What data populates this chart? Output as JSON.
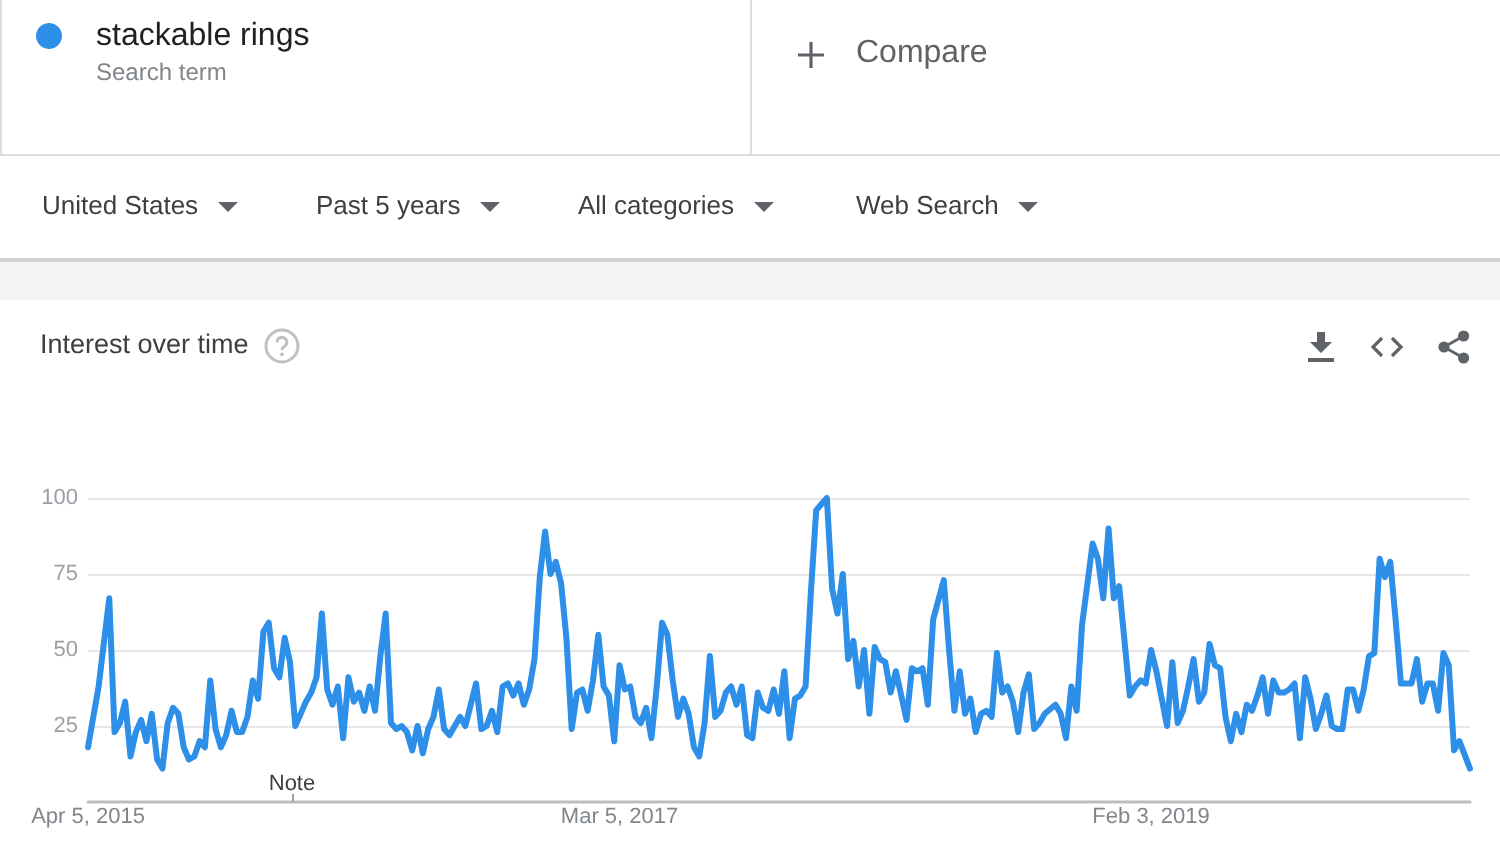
{
  "chart_data": {
    "type": "line",
    "title": "Interest over time",
    "legend": "top left",
    "grid": "y",
    "marker": "none",
    "xlim": [
      "2015-04-05",
      "2020-03-29"
    ],
    "xticks": [
      {
        "value": "2015-04-05",
        "label": "Apr 5, 2015"
      },
      {
        "value": "2017-03-05",
        "label": "Mar 5, 2017"
      },
      {
        "value": "2019-02-03",
        "label": "Feb 3, 2019"
      }
    ],
    "ylim": [
      0,
      100
    ],
    "yticks": [
      25,
      50,
      75,
      100
    ],
    "annotations": [
      "Search term",
      "Compare",
      "United States",
      "Past 5 years",
      "All categories",
      "Web Search",
      "Note"
    ],
    "x": [
      "2015-04-05",
      "2015-04-19",
      "2015-05-03",
      "2015-05-10",
      "2015-05-17",
      "2015-05-24",
      "2015-05-31",
      "2015-06-07",
      "2015-06-14",
      "2015-06-21",
      "2015-06-28",
      "2015-07-05",
      "2015-07-12",
      "2015-07-19",
      "2015-07-26",
      "2015-08-02",
      "2015-08-09",
      "2015-08-16",
      "2015-08-23",
      "2015-08-30",
      "2015-09-06",
      "2015-09-13",
      "2015-09-20",
      "2015-09-27",
      "2015-10-04",
      "2015-10-11",
      "2015-10-18",
      "2015-10-25",
      "2015-11-01",
      "2015-11-08",
      "2015-11-15",
      "2015-11-22",
      "2015-11-29",
      "2015-12-06",
      "2015-12-13",
      "2015-12-20",
      "2015-12-27",
      "2016-01-03",
      "2016-01-10",
      "2016-01-17",
      "2016-01-24",
      "2016-01-31",
      "2016-02-07",
      "2016-02-14",
      "2016-02-21",
      "2016-02-28",
      "2016-03-06",
      "2016-03-13",
      "2016-03-20",
      "2016-03-27",
      "2016-04-03",
      "2016-04-10",
      "2016-04-17",
      "2016-04-24",
      "2016-05-01",
      "2016-05-08",
      "2016-05-15",
      "2016-05-22",
      "2016-05-29",
      "2016-06-05",
      "2016-06-12",
      "2016-06-19",
      "2016-06-26",
      "2016-07-03",
      "2016-07-10",
      "2016-07-17",
      "2016-07-24",
      "2016-07-31",
      "2016-08-07",
      "2016-08-14",
      "2016-08-21",
      "2016-08-28",
      "2016-09-04",
      "2016-09-11",
      "2016-09-18",
      "2016-09-25",
      "2016-10-02",
      "2016-10-09",
      "2016-10-16",
      "2016-10-23",
      "2016-10-30",
      "2016-11-06",
      "2016-11-13",
      "2016-11-20",
      "2016-11-27",
      "2016-12-04",
      "2016-12-11",
      "2016-12-18",
      "2016-12-25",
      "2017-01-01",
      "2017-01-08",
      "2017-01-15",
      "2017-01-22",
      "2017-01-29",
      "2017-02-05",
      "2017-02-12",
      "2017-02-19",
      "2017-02-26",
      "2017-03-05",
      "2017-03-12",
      "2017-03-19",
      "2017-03-26",
      "2017-04-02",
      "2017-04-09",
      "2017-04-16",
      "2017-04-23",
      "2017-04-30",
      "2017-05-07",
      "2017-05-14",
      "2017-05-21",
      "2017-05-28",
      "2017-06-04",
      "2017-06-11",
      "2017-06-18",
      "2017-06-25",
      "2017-07-02",
      "2017-07-09",
      "2017-07-16",
      "2017-07-23",
      "2017-07-30",
      "2017-08-06",
      "2017-08-13",
      "2017-08-20",
      "2017-08-27",
      "2017-09-03",
      "2017-09-10",
      "2017-09-17",
      "2017-09-24",
      "2017-10-01",
      "2017-10-08",
      "2017-10-15",
      "2017-10-22",
      "2017-10-29",
      "2017-11-05",
      "2017-11-12",
      "2017-11-19",
      "2017-11-26",
      "2017-12-03",
      "2017-12-10",
      "2017-12-17",
      "2017-12-24",
      "2017-12-31",
      "2018-01-07",
      "2018-01-14",
      "2018-01-21",
      "2018-01-28",
      "2018-02-04",
      "2018-02-11",
      "2018-02-18",
      "2018-02-25",
      "2018-03-04",
      "2018-03-11",
      "2018-03-18",
      "2018-03-25",
      "2018-04-01",
      "2018-04-08",
      "2018-04-15",
      "2018-04-22",
      "2018-05-06",
      "2018-05-13",
      "2018-05-20",
      "2018-05-27",
      "2018-06-03",
      "2018-06-10",
      "2018-06-17",
      "2018-06-24",
      "2018-07-01",
      "2018-07-08",
      "2018-07-15",
      "2018-07-22",
      "2018-07-29",
      "2018-08-05",
      "2018-08-12",
      "2018-08-19",
      "2018-08-26",
      "2018-09-02",
      "2018-09-09",
      "2018-09-16",
      "2018-09-30",
      "2018-10-07",
      "2018-10-14",
      "2018-10-21",
      "2018-10-28",
      "2018-11-04",
      "2018-11-18",
      "2018-11-25",
      "2018-12-02",
      "2018-12-09",
      "2018-12-16",
      "2018-12-23",
      "2019-01-06",
      "2019-01-13",
      "2019-01-20",
      "2019-01-27",
      "2019-02-03",
      "2019-02-10",
      "2019-02-24",
      "2019-03-03",
      "2019-03-10",
      "2019-03-17",
      "2019-03-24",
      "2019-03-31",
      "2019-04-07",
      "2019-04-14",
      "2019-04-21",
      "2019-04-28",
      "2019-05-05",
      "2019-05-12",
      "2019-05-19",
      "2019-05-26",
      "2019-06-02",
      "2019-06-09",
      "2019-06-16",
      "2019-06-23",
      "2019-06-30",
      "2019-07-07",
      "2019-07-14",
      "2019-07-21",
      "2019-07-28",
      "2019-08-04",
      "2019-08-11",
      "2019-08-18",
      "2019-08-25",
      "2019-09-01",
      "2019-09-08",
      "2019-09-15",
      "2019-09-22",
      "2019-09-29",
      "2019-10-06",
      "2019-10-13",
      "2019-10-20",
      "2019-10-27",
      "2019-11-03",
      "2019-11-10",
      "2019-11-17",
      "2019-11-24",
      "2019-12-01",
      "2019-12-08",
      "2019-12-15",
      "2019-12-22",
      "2019-12-29",
      "2020-01-05",
      "2020-01-12",
      "2020-01-19",
      "2020-01-26",
      "2020-02-02",
      "2020-02-09",
      "2020-02-16",
      "2020-02-23",
      "2020-03-01",
      "2020-03-08",
      "2020-03-15",
      "2020-03-29"
    ],
    "series": [
      {
        "name": "stackable rings",
        "color": "#2d8fe8",
        "values": [
          18,
          38,
          67,
          23,
          26,
          33,
          15,
          23,
          27,
          20,
          29,
          14,
          11,
          26,
          31,
          29,
          18,
          14,
          15,
          20,
          18,
          40,
          24,
          18,
          22,
          30,
          23,
          23,
          28,
          40,
          34,
          56,
          59,
          44,
          41,
          54,
          46,
          25,
          29,
          33,
          36,
          41,
          62,
          37,
          32,
          38,
          21,
          41,
          33,
          36,
          30,
          38,
          30,
          48,
          62,
          26,
          24,
          25,
          23,
          17,
          25,
          16,
          24,
          28,
          37,
          24,
          22,
          25,
          28,
          25,
          32,
          39,
          24,
          25,
          30,
          23,
          38,
          39,
          35,
          39,
          32,
          37,
          47,
          74,
          89,
          75,
          79,
          72,
          54,
          24,
          36,
          37,
          30,
          40,
          55,
          38,
          35,
          20,
          45,
          37,
          38,
          28,
          26,
          31,
          21,
          38,
          59,
          55,
          40,
          28,
          34,
          29,
          18,
          15,
          26,
          48,
          28,
          30,
          36,
          38,
          32,
          38,
          22,
          21,
          36,
          31,
          30,
          37,
          29,
          43,
          21,
          34,
          35,
          38,
          69,
          96,
          98,
          100,
          70,
          62,
          75,
          47,
          53,
          38,
          50,
          29,
          51,
          47,
          46,
          36,
          43,
          35,
          27,
          44,
          43,
          44,
          32,
          60,
          73,
          50,
          30,
          43,
          29,
          34,
          23,
          29,
          30,
          28,
          49,
          36,
          38,
          33,
          23,
          36,
          42,
          24,
          26,
          29,
          32,
          29,
          21,
          38,
          30,
          58,
          85,
          80,
          67,
          90,
          67,
          71,
          35,
          38,
          40,
          39,
          50,
          43,
          25,
          46,
          26,
          30,
          38,
          47,
          33,
          36,
          52,
          45,
          44,
          28,
          20,
          29,
          23,
          32,
          30,
          35,
          41,
          29,
          40,
          36,
          36,
          37,
          39,
          21,
          41,
          34,
          24,
          29,
          35,
          25,
          24,
          24,
          37,
          37,
          30,
          37,
          48,
          49,
          80,
          74,
          79,
          60,
          39,
          39,
          39,
          47,
          33,
          39,
          39,
          30,
          49,
          45,
          17,
          20,
          11
        ]
      }
    ]
  }
}
